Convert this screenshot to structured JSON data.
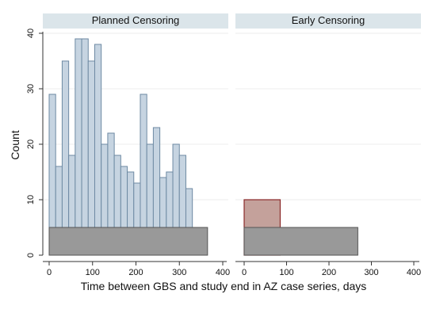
{
  "chart_data": {
    "type": "bar",
    "ylabel": "Count",
    "xlabel": "Time between GBS and study end in AZ case series, days",
    "xlim": [
      0,
      400
    ],
    "ylim": [
      0,
      40
    ],
    "x_ticks": [
      0,
      100,
      200,
      300,
      400
    ],
    "y_ticks": [
      0,
      10,
      20,
      30,
      40
    ],
    "grid": true,
    "colors": {
      "bar_fill": "#c6d4e1",
      "bar_stroke": "#6e8aa3",
      "base_fill": "#999999",
      "base_stroke": "#555555",
      "early_fill": "#c4a19b",
      "early_stroke": "#8b2a2a",
      "panel_header": "#dbe5ea",
      "grid": "#ececec"
    },
    "panels": [
      {
        "title": "Planned Censoring",
        "bin_width": 15,
        "bins": [
          {
            "start": 0,
            "count": 29
          },
          {
            "start": 15,
            "count": 16
          },
          {
            "start": 30,
            "count": 35
          },
          {
            "start": 45,
            "count": 18
          },
          {
            "start": 60,
            "count": 39
          },
          {
            "start": 75,
            "count": 39
          },
          {
            "start": 90,
            "count": 35
          },
          {
            "start": 105,
            "count": 38
          },
          {
            "start": 120,
            "count": 20
          },
          {
            "start": 135,
            "count": 22
          },
          {
            "start": 150,
            "count": 18
          },
          {
            "start": 165,
            "count": 16
          },
          {
            "start": 180,
            "count": 15
          },
          {
            "start": 195,
            "count": 13
          },
          {
            "start": 210,
            "count": 29
          },
          {
            "start": 225,
            "count": 20
          },
          {
            "start": 240,
            "count": 23
          },
          {
            "start": 255,
            "count": 14
          },
          {
            "start": 270,
            "count": 15
          },
          {
            "start": 285,
            "count": 20
          },
          {
            "start": 300,
            "count": 18
          },
          {
            "start": 315,
            "count": 12
          }
        ],
        "base_bar": {
          "start": 0,
          "end": 365,
          "count": 5
        },
        "highlight_bar": null
      },
      {
        "title": "Early Censoring",
        "bin_width": null,
        "bins": [],
        "base_bar": {
          "start": 0,
          "end": 268,
          "count": 5
        },
        "highlight_bar": {
          "start": 0,
          "end": 85,
          "count": 10
        }
      }
    ]
  }
}
